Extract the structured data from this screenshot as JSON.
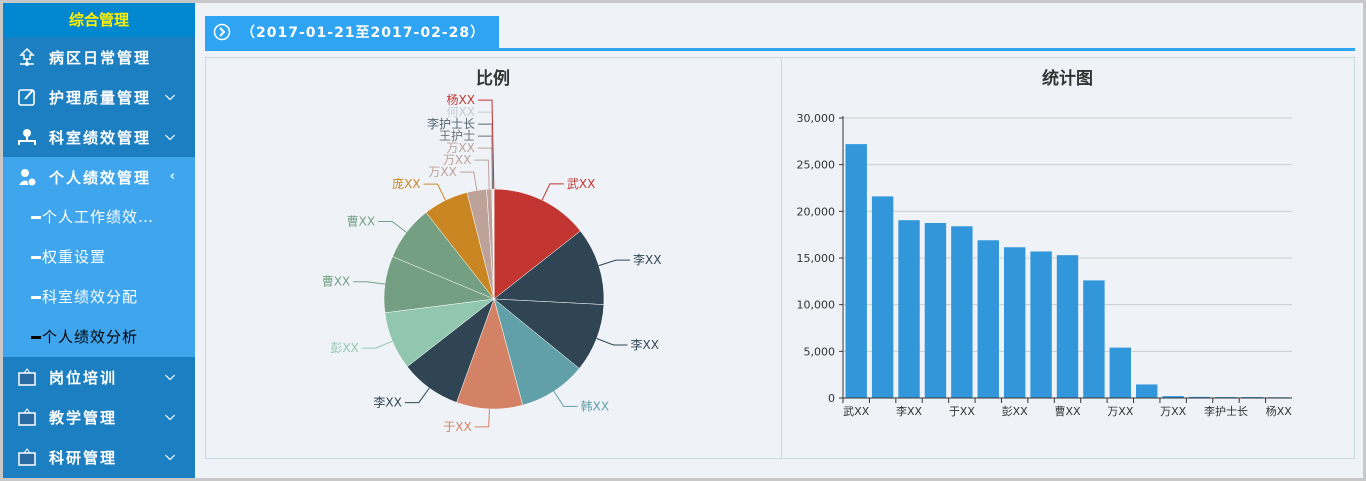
{
  "sidebar": {
    "header": "综合管理",
    "items": [
      {
        "label": "病区日常管理",
        "icon": "network-home-icon"
      },
      {
        "label": "护理质量管理",
        "icon": "edit-icon",
        "chevron": "down"
      },
      {
        "label": "科室绩效管理",
        "icon": "org-user-icon",
        "chevron": "down"
      },
      {
        "label": "个人绩效管理",
        "icon": "user-money-icon",
        "chevron": "left"
      },
      {
        "label": "岗位培训",
        "icon": "board-icon",
        "chevron": "down"
      },
      {
        "label": "教学管理",
        "icon": "board-icon",
        "chevron": "down"
      },
      {
        "label": "科研管理",
        "icon": "board-icon",
        "chevron": "down"
      }
    ],
    "subitems": [
      "个人工作绩效…",
      "权重设置",
      "科室绩效分配",
      "个人绩效分析"
    ],
    "active_subitem": "个人绩效分析"
  },
  "tab": {
    "label": "（2017-01-21至2017-02-28）",
    "icon": "arrow-circle-right-icon"
  },
  "chart_data": [
    {
      "type": "pie",
      "title": "比例",
      "labels": [
        "武XX",
        "李XX",
        "李XX",
        "韩XX",
        "于XX",
        "李XX",
        "彭XX",
        "曹XX",
        "曹XX",
        "庞XX",
        "万XX",
        "万XX",
        "万XX",
        "王护士",
        "李护士长",
        "何XX",
        "杨XX"
      ],
      "values": [
        27200,
        21600,
        19050,
        18750,
        18400,
        16900,
        16150,
        15700,
        15300,
        12600,
        5400,
        1450,
        200,
        120,
        100,
        100,
        80
      ],
      "colors": [
        "#c23531",
        "#2f4554",
        "#2f4554",
        "#61a0a8",
        "#d48265",
        "#2f4554",
        "#91c7ae",
        "#749f83",
        "#749f83",
        "#ca8622",
        "#bda29a",
        "#bda29a",
        "#bda29a",
        "#6e7074",
        "#546570",
        "#c4ccd3",
        "#c23531"
      ]
    },
    {
      "type": "bar",
      "title": "统计图",
      "categories": [
        "武XX",
        "李XX",
        "李XX",
        "韩XX",
        "于XX",
        "李XX",
        "彭XX",
        "曹XX",
        "曹XX",
        "庞XX",
        "万XX",
        "万XX",
        "万XX",
        "王护士",
        "李护士长",
        "何XX",
        "杨XX"
      ],
      "values": [
        27200,
        21600,
        19050,
        18750,
        18400,
        16900,
        16150,
        15700,
        15300,
        12600,
        5400,
        1450,
        200,
        120,
        100,
        100,
        80
      ],
      "ylim": [
        0,
        30000
      ],
      "yticks": [
        "0",
        "5,000",
        "10,000",
        "15,000",
        "20,000",
        "25,000",
        "30,000"
      ],
      "grid": true,
      "color": "#3296db"
    }
  ]
}
